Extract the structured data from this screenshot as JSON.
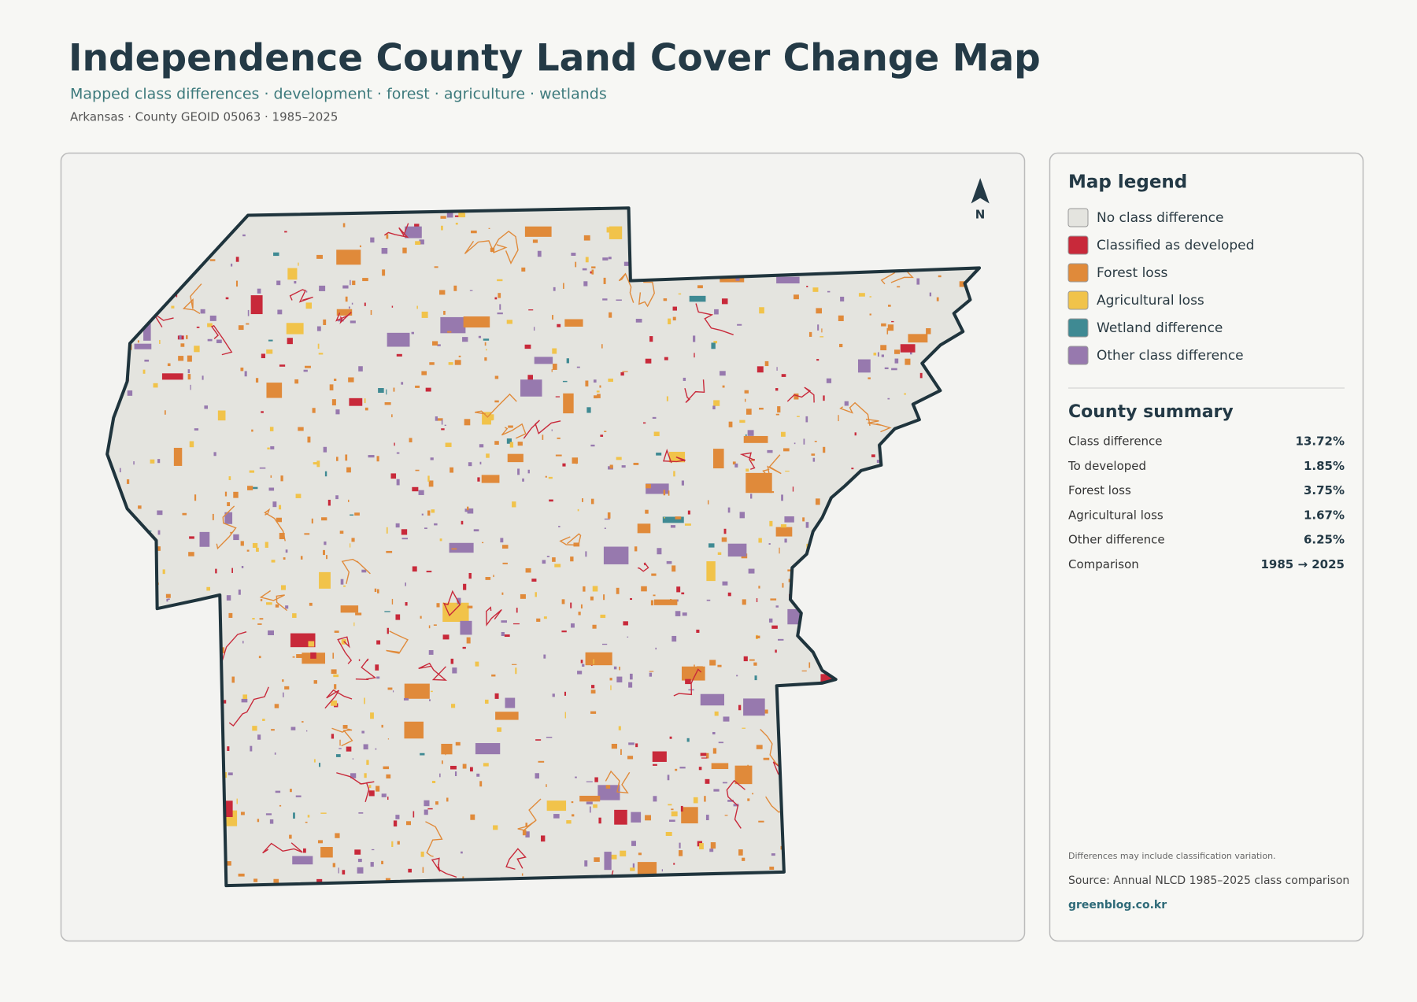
{
  "header": {
    "title": "Independence County Land Cover Change Map",
    "subtitle": "Mapped class differences · development · forest · agriculture · wetlands",
    "meta": "Arkansas · County GEOID 05063 · 1985–2025"
  },
  "map": {
    "north": "N"
  },
  "legend": {
    "title": "Map legend",
    "items": [
      {
        "label": "No class difference",
        "color": "#e4e4df"
      },
      {
        "label": "Classified as developed",
        "color": "#c8293a"
      },
      {
        "label": "Forest loss",
        "color": "#e08a3a"
      },
      {
        "label": "Agricultural loss",
        "color": "#f1c34a"
      },
      {
        "label": "Wetland difference",
        "color": "#3f8a93"
      },
      {
        "label": "Other class difference",
        "color": "#9779ae"
      }
    ]
  },
  "summary": {
    "title": "County summary",
    "rows": [
      [
        "Class difference",
        "13.72%"
      ],
      [
        "To developed",
        "1.85%"
      ],
      [
        "Forest loss",
        "3.75%"
      ],
      [
        "Agricultural loss",
        "1.67%"
      ],
      [
        "Other difference",
        "6.25%"
      ],
      [
        "Comparison",
        "1985 → 2025"
      ]
    ]
  },
  "footer": {
    "note": "Differences may include classification variation.",
    "source": "Source: Annual NLCD 1985–2025 class comparison",
    "site": "greenblog.co.kr"
  }
}
